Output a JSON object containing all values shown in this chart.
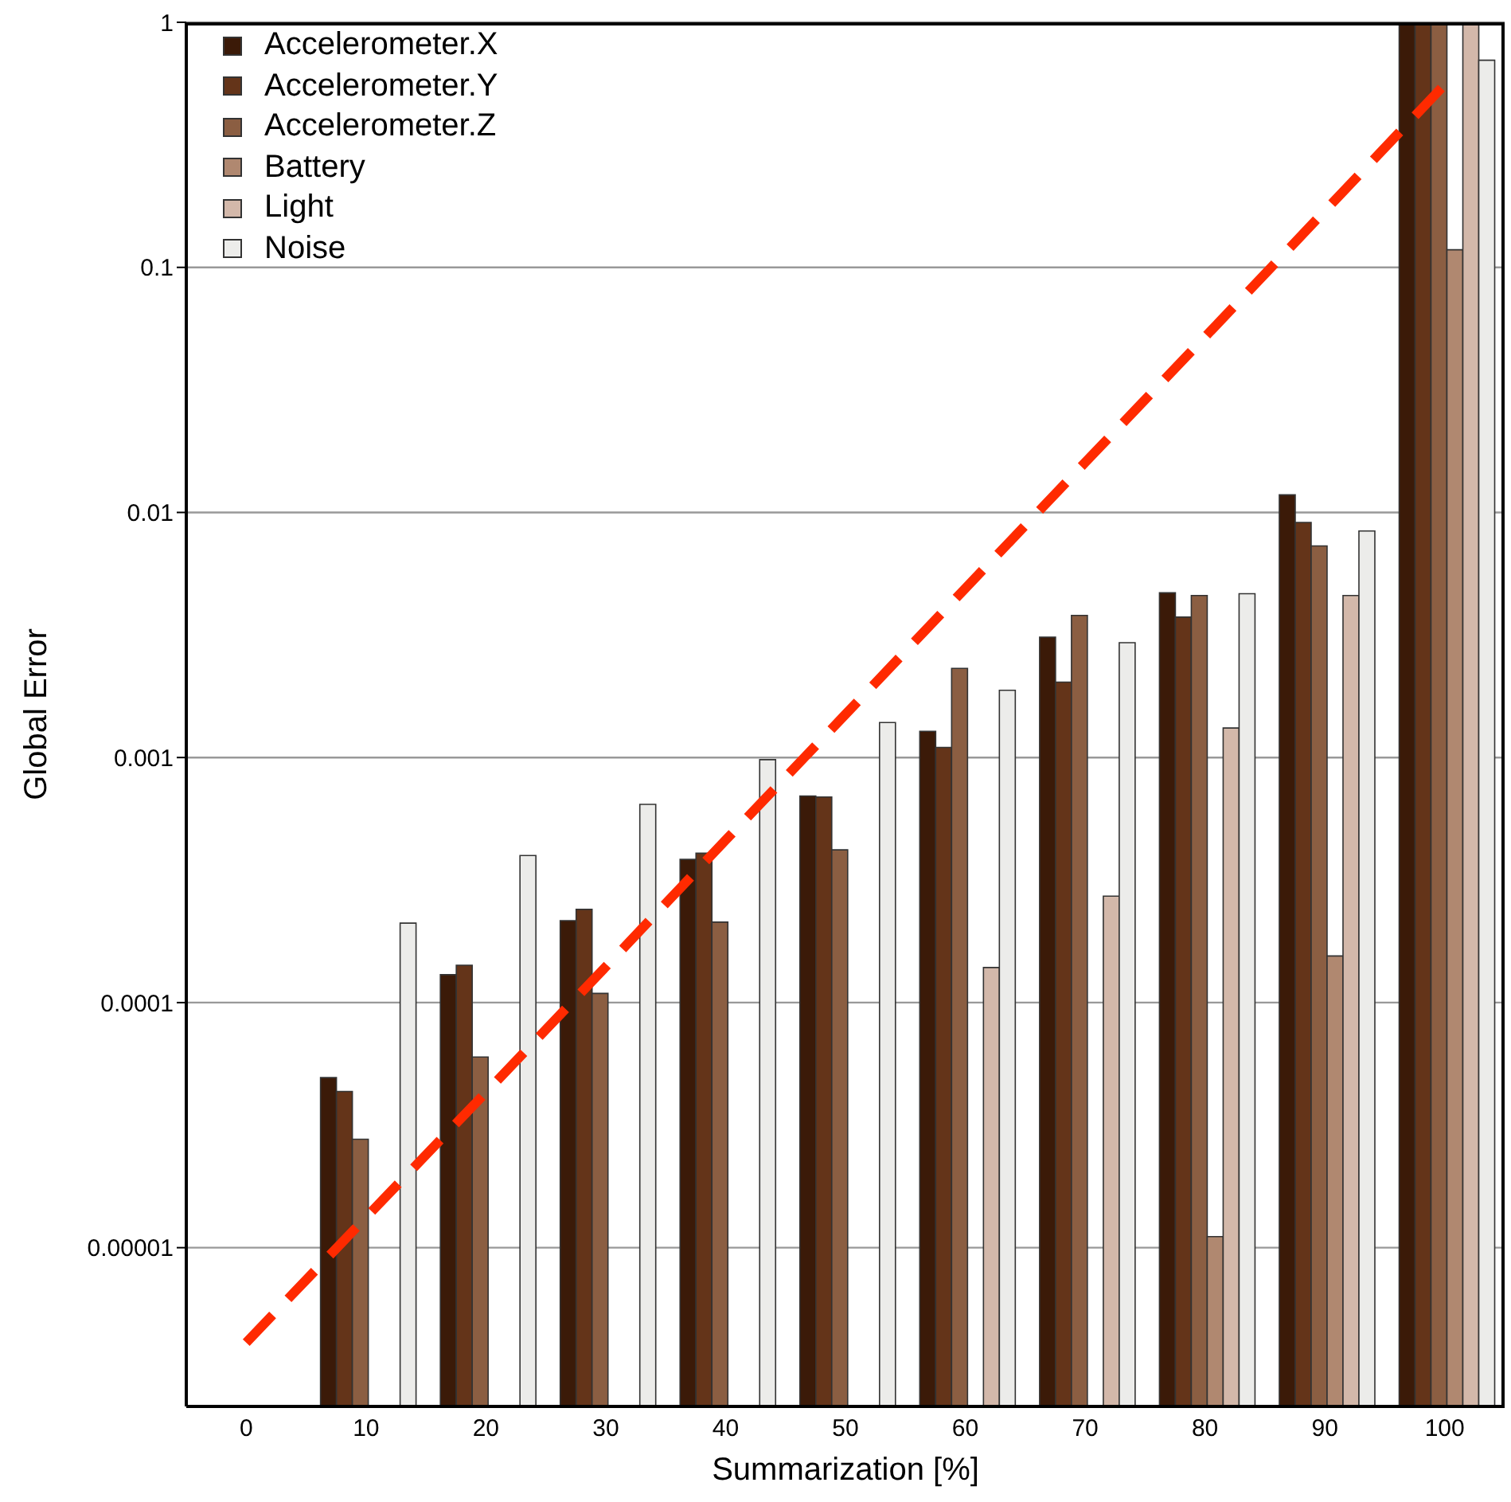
{
  "chart_data": {
    "type": "bar",
    "xlabel": "Summarization [%]",
    "ylabel": "Global Error",
    "categories": [
      "0",
      "10",
      "20",
      "30",
      "40",
      "50",
      "60",
      "70",
      "80",
      "90",
      "100"
    ],
    "log": "y",
    "ylim": [
      2.25e-06,
      1
    ],
    "yticks": [
      {
        "value": 1e-05,
        "label": "0.00001"
      },
      0.0001,
      0.001,
      0.01,
      0.1,
      1
    ],
    "grid": "y",
    "legend": "top left",
    "series": [
      {
        "name": "Accelerometer.X",
        "color": "#3b1a08",
        "values": [
          null,
          4.94e-05,
          0.00013,
          0.000216,
          0.000384,
          0.000697,
          0.00128,
          0.0031,
          0.0047,
          0.0118,
          1
        ]
      },
      {
        "name": "Accelerometer.Y",
        "color": "#643419",
        "values": [
          null,
          4.34e-05,
          0.000142,
          0.00024,
          0.000407,
          0.00069,
          0.0011,
          0.00203,
          0.00374,
          0.0091,
          1
        ]
      },
      {
        "name": "Accelerometer.Z",
        "color": "#8b5e42",
        "values": [
          null,
          2.77e-05,
          6e-05,
          0.000109,
          0.000213,
          0.00042,
          0.00231,
          0.0038,
          0.00458,
          0.0073,
          1
        ]
      },
      {
        "name": "Battery",
        "color": "#b08870",
        "values": [
          null,
          null,
          null,
          null,
          null,
          null,
          null,
          null,
          1.11e-05,
          0.000155,
          0.118
        ]
      },
      {
        "name": "Light",
        "color": "#d3b8aa",
        "values": [
          null,
          null,
          null,
          null,
          null,
          null,
          0.000139,
          0.000272,
          0.00132,
          0.00458,
          1
        ]
      },
      {
        "name": "Noise",
        "color": "#ececea",
        "values": [
          null,
          0.000211,
          0.000398,
          0.000644,
          0.00098,
          0.00139,
          0.00188,
          0.00294,
          0.00466,
          0.0084,
          0.7
        ]
      },
      {
        "type": "line",
        "color": "#ff2a00",
        "line_style": "dashed",
        "marker": "none",
        "values": [
          4.1e-06,
          1.33e-05,
          4.3e-05,
          0.00014,
          0.00046,
          0.0015,
          0.0049,
          0.016,
          0.052,
          0.17,
          0.557
        ]
      }
    ]
  }
}
